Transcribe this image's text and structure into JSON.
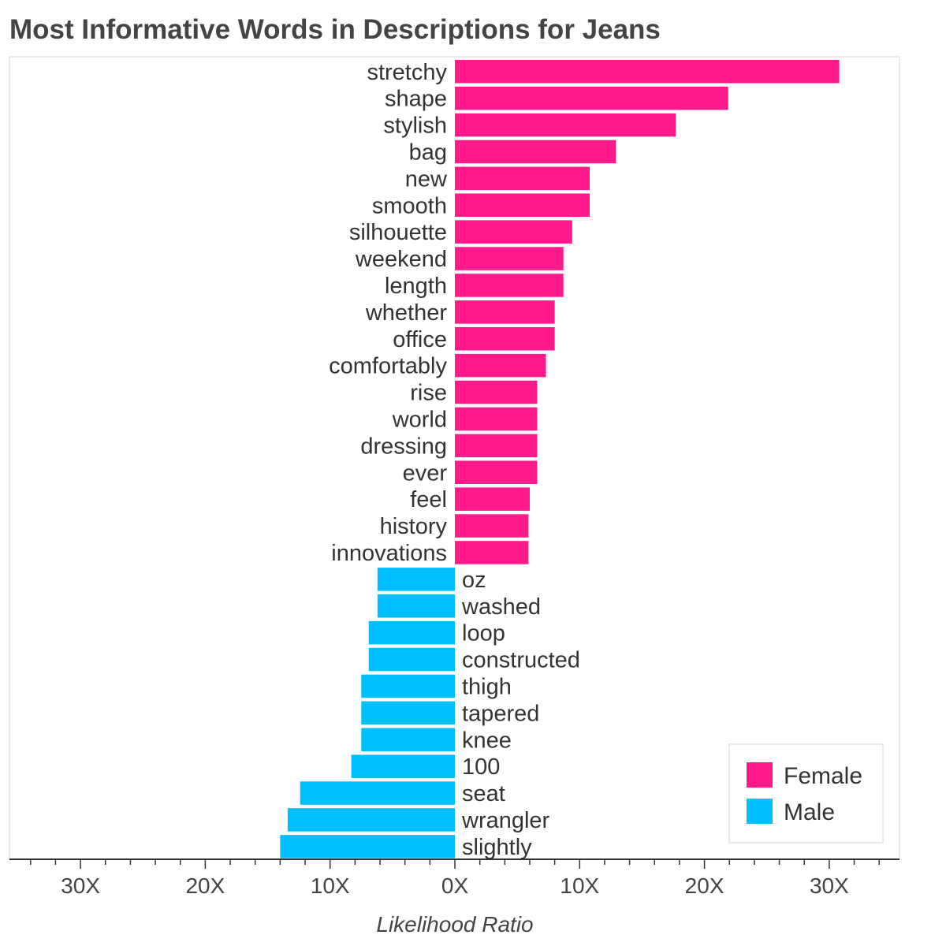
{
  "chart_data": {
    "type": "bar",
    "orientation": "horizontal-diverging",
    "title": "Most Informative Words in Descriptions for Jeans",
    "xlabel": "Likelihood Ratio",
    "xlim": [
      -35.5,
      35.5
    ],
    "tick_values": [
      -30,
      -20,
      -10,
      0,
      10,
      20,
      30
    ],
    "tick_labels": [
      "30X",
      "20X",
      "10X",
      "0X",
      "10X",
      "20X",
      "30X"
    ],
    "grid": false,
    "legend_position": "bottom-right",
    "series": [
      {
        "name": "Female",
        "color": "#ff1a8c",
        "categories": [
          "stretchy",
          "shape",
          "stylish",
          "bag",
          "new",
          "smooth",
          "silhouette",
          "weekend",
          "length",
          "whether",
          "office",
          "comfortably",
          "rise",
          "world",
          "dressing",
          "ever",
          "feel",
          "history",
          "innovations"
        ],
        "values": [
          30.8,
          21.9,
          17.7,
          12.9,
          10.8,
          10.8,
          9.4,
          8.7,
          8.7,
          8.0,
          8.0,
          7.3,
          6.6,
          6.6,
          6.6,
          6.6,
          6.0,
          5.9,
          5.9
        ]
      },
      {
        "name": "Male",
        "color": "#00bfff",
        "categories": [
          "oz",
          "washed",
          "loop",
          "constructed",
          "thigh",
          "tapered",
          "knee",
          "100",
          "seat",
          "wrangler",
          "slightly"
        ],
        "values": [
          6.2,
          6.2,
          6.9,
          6.9,
          7.5,
          7.5,
          7.5,
          8.3,
          12.4,
          13.4,
          14.0
        ]
      }
    ]
  }
}
